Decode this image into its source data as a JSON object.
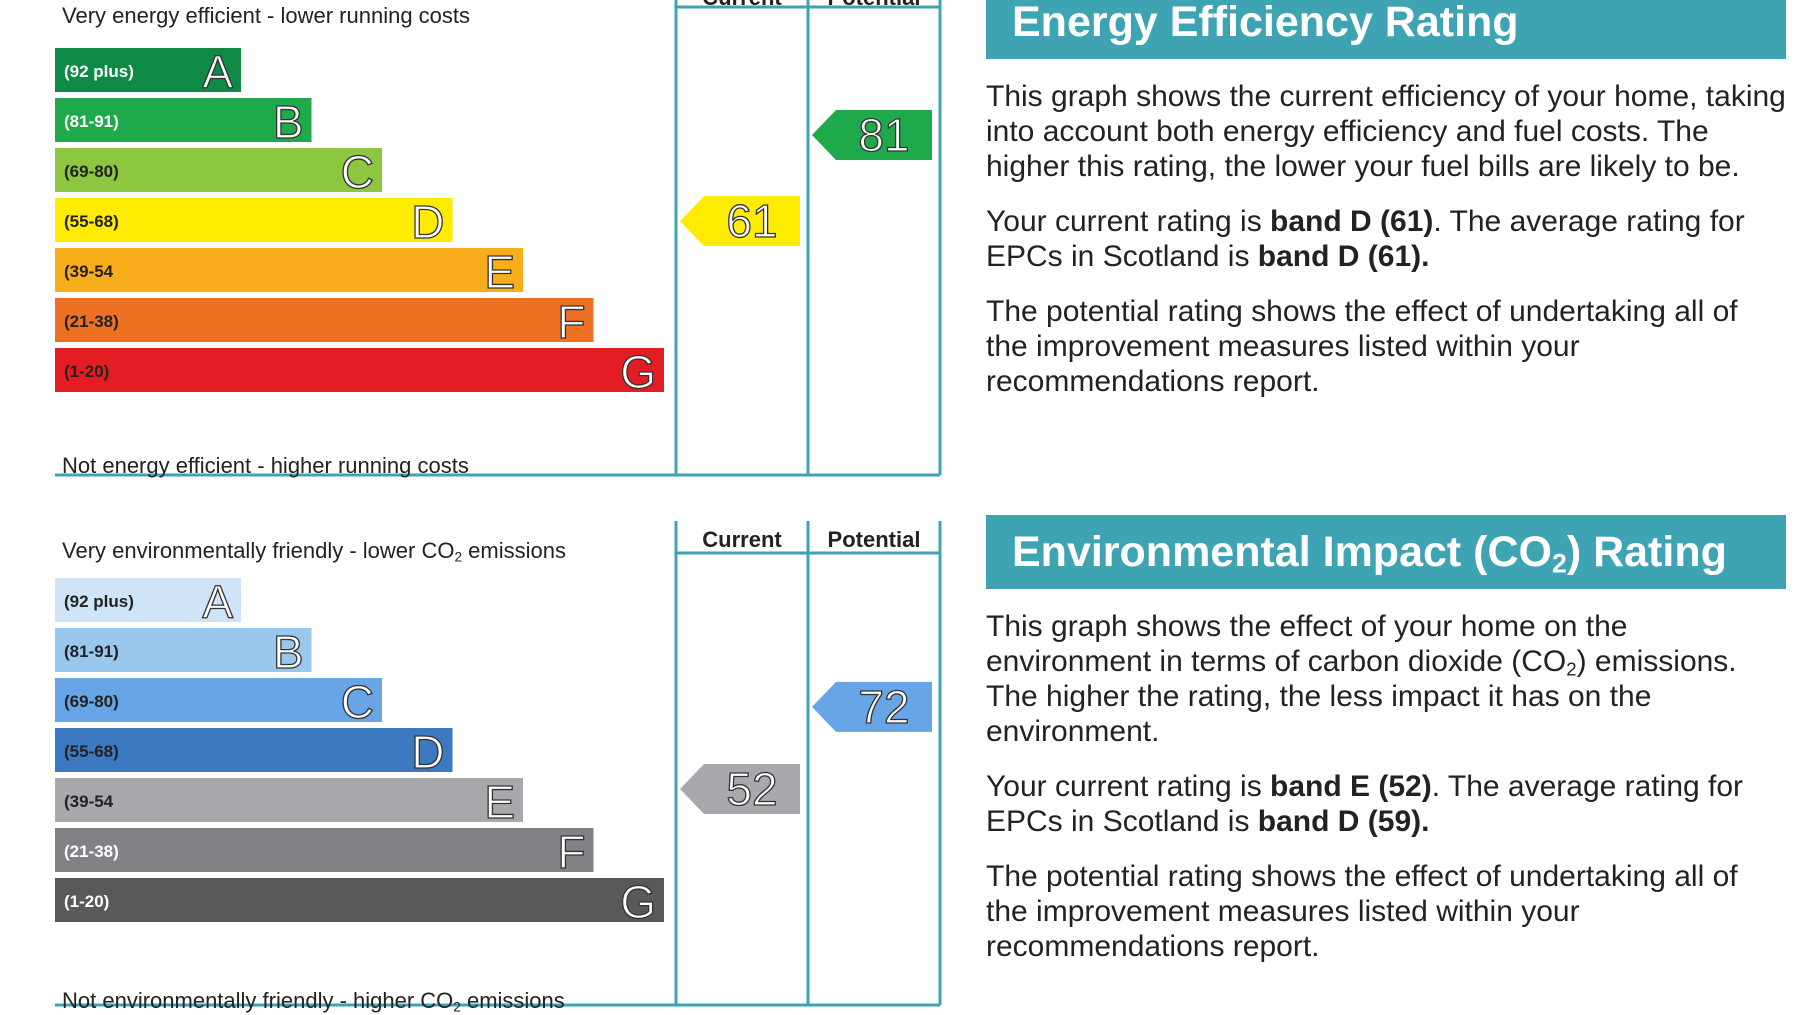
{
  "energy_panel": {
    "title": "Energy Efficiency Rating",
    "para1": "This graph shows the current efficiency of your home, taking into account both energy efficiency and fuel costs. The higher this rating, the lower your fuel bills are likely to be.",
    "para2_a": "Your current rating is ",
    "para2_b": "band D (61)",
    "para2_c": ". The average rating for EPCs in Scotland is ",
    "para2_d": "band D (61).",
    "para3": "The potential rating shows the effect of undertaking all of the improvement measures listed within your recommendations report."
  },
  "impact_panel": {
    "title_pre": "Environmental Impact (CO",
    "title_sub": "2",
    "title_post": ") Rating",
    "para1_pre": "This graph shows the effect of your home on the environment in terms of carbon dioxide (CO",
    "para1_sub": "2",
    "para1_post": ") emissions. The higher the rating, the less impact it has on the environment.",
    "para2_a": "Your current rating is ",
    "para2_b": "band E (52)",
    "para2_c": ". The average rating for EPCs in Scotland is ",
    "para2_d": "band D (59).",
    "para3": "The potential rating shows the effect of undertaking all of the improvement measures listed within your recommendations report."
  },
  "chart_data": [
    {
      "type": "bar",
      "caption_top": "Very energy efficient - lower running costs",
      "caption_bottom": "Not energy efficient - higher running costs",
      "column_headers": [
        "Current",
        "Potential"
      ],
      "categories": [
        "A",
        "B",
        "C",
        "D",
        "E",
        "F",
        "G"
      ],
      "ranges": [
        "(92 plus)",
        "(81-91)",
        "(69-80)",
        "(55-68)",
        "(39-54",
        "(21-38)",
        "(1-20)"
      ],
      "band_colors": [
        "#0f8a46",
        "#1eaa4b",
        "#8dc63f",
        "#ffec00",
        "#f8ae1a",
        "#ee7023",
        "#e31d23"
      ],
      "letter_style": "white",
      "range_text_colors": [
        "#ffffff",
        "#ffffff",
        "#222222",
        "#222222",
        "#222222",
        "#222222",
        "#222222"
      ],
      "current": {
        "value": 61,
        "band": "D",
        "color": "#ffec00"
      },
      "potential": {
        "value": 81,
        "band": "B",
        "color": "#1eaa4b"
      }
    },
    {
      "type": "bar",
      "caption_top_pre": "Very environmentally friendly - lower CO",
      "caption_top_sub": "2",
      "caption_top_post": " emissions",
      "caption_bottom_pre": "Not environmentally friendly - higher CO",
      "caption_bottom_sub": "2",
      "caption_bottom_post": " emissions",
      "column_headers": [
        "Current",
        "Potential"
      ],
      "categories": [
        "A",
        "B",
        "C",
        "D",
        "E",
        "F",
        "G"
      ],
      "ranges": [
        "(92 plus)",
        "(81-91)",
        "(69-80)",
        "(55-68)",
        "(39-54",
        "(21-38)",
        "(1-20)"
      ],
      "band_colors": [
        "#cfe4f6",
        "#99c7ee",
        "#67a5e6",
        "#3d79c1",
        "#a7a9ac",
        "#808285",
        "#58595b"
      ],
      "letter_style": "white",
      "range_text_colors": [
        "#222222",
        "#222222",
        "#222222",
        "#222222",
        "#222222",
        "#ffffff",
        "#ffffff"
      ],
      "current": {
        "value": 52,
        "band": "E",
        "color": "#a7a9ac"
      },
      "potential": {
        "value": 72,
        "band": "C",
        "color": "#67a5e6"
      }
    }
  ]
}
